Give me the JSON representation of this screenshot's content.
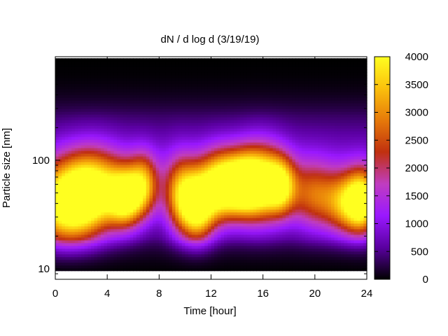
{
  "chart_data": {
    "type": "heatmap",
    "title": "dN / d log d (3/19/19)",
    "xlabel": "Time [hour]",
    "ylabel": "Particle size [nm]",
    "xlim": [
      0,
      24
    ],
    "ylim": [
      8,
      900
    ],
    "y_scale": "log",
    "x_ticks": [
      0,
      4,
      8,
      12,
      16,
      20,
      24
    ],
    "x_tick_labels": [
      "0",
      "4",
      "8",
      "12",
      "16",
      "20",
      "24"
    ],
    "y_ticks": [
      10,
      100
    ],
    "y_tick_labels": [
      "10",
      "100"
    ],
    "colorbar": {
      "range": [
        0,
        4000
      ],
      "ticks": [
        0,
        500,
        1000,
        1500,
        2000,
        2500,
        3000,
        3500,
        4000
      ],
      "tick_labels": [
        "0",
        "500",
        "1000",
        "1500",
        "2000",
        "2500",
        "3000",
        "3500",
        "4000"
      ],
      "palette": [
        "#000000",
        "#5a00a0",
        "#9a18ff",
        "#c03dc0",
        "#c0300f",
        "#e67a0a",
        "#fbc00c",
        "#ffff20"
      ]
    },
    "grid": false,
    "legend": "none",
    "blobs": [
      {
        "t": 0.8,
        "d": 38,
        "st": 1.9,
        "sd": 0.26,
        "v": 3500
      },
      {
        "t": 3.0,
        "d": 55,
        "st": 1.7,
        "sd": 0.25,
        "v": 2900
      },
      {
        "t": 5.4,
        "d": 45,
        "st": 0.9,
        "sd": 0.18,
        "v": 3100
      },
      {
        "t": 6.8,
        "d": 60,
        "st": 0.8,
        "sd": 0.2,
        "v": 2300
      },
      {
        "t": 9.7,
        "d": 48,
        "st": 0.9,
        "sd": 0.24,
        "v": 2500
      },
      {
        "t": 11.0,
        "d": 36,
        "st": 0.9,
        "sd": 0.22,
        "v": 3100
      },
      {
        "t": 12.5,
        "d": 58,
        "st": 1.1,
        "sd": 0.22,
        "v": 2900
      },
      {
        "t": 14.3,
        "d": 60,
        "st": 1.2,
        "sd": 0.2,
        "v": 3200
      },
      {
        "t": 15.9,
        "d": 62,
        "st": 1.3,
        "sd": 0.24,
        "v": 3100
      },
      {
        "t": 17.4,
        "d": 58,
        "st": 0.8,
        "sd": 0.18,
        "v": 2300
      },
      {
        "t": 19.8,
        "d": 48,
        "st": 1.2,
        "sd": 0.22,
        "v": 1700
      },
      {
        "t": 22.6,
        "d": 40,
        "st": 1.3,
        "sd": 0.2,
        "v": 2800
      },
      {
        "t": 23.7,
        "d": 42,
        "st": 0.8,
        "sd": 0.2,
        "v": 2400
      }
    ]
  }
}
